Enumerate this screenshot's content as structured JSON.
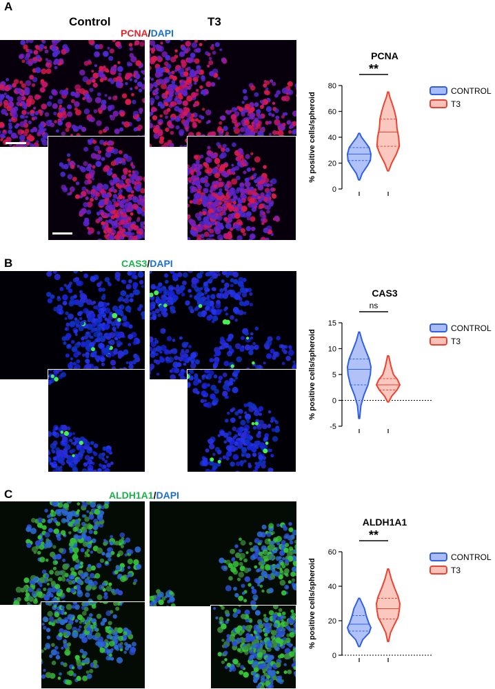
{
  "figure": {
    "panels": [
      {
        "letter": "A",
        "stain": {
          "marker": "PCNA",
          "sep": "/",
          "counter": "DAPI",
          "marker_color": "#e8222a",
          "counter_color": "#1a6fd0"
        },
        "columns": [
          "Control",
          "T3"
        ],
        "micro_palette": {
          "bg": "#07000c",
          "cells": [
            "#5a22c8",
            "#7a1fb5",
            "#c2166a",
            "#d81b4a",
            "#4d2ad1"
          ]
        }
      },
      {
        "letter": "B",
        "stain": {
          "marker": "CAS3",
          "sep": "/",
          "counter": "DAPI",
          "marker_color": "#19b34a",
          "counter_color": "#1a6fd0"
        },
        "columns": [],
        "micro_palette": {
          "bg": "#000006",
          "cells": [
            "#1822d6",
            "#2233e8",
            "#1030c0",
            "#2a2ad0"
          ],
          "spots": "#45f050"
        }
      },
      {
        "letter": "C",
        "stain": {
          "marker": "ALDH1A1",
          "sep": "/",
          "counter": "DAPI",
          "marker_color": "#19b34a",
          "counter_color": "#1a6fd0"
        },
        "columns": [],
        "micro_palette": {
          "bg": "#040a04",
          "cells": [
            "#2b4fd2",
            "#3a8a3a",
            "#36c23a",
            "#2a6ad0"
          ]
        }
      }
    ]
  },
  "chart_data": [
    {
      "type": "violin",
      "title": "PCNA",
      "ylabel": "% positive cells/spheroid",
      "ylim": [
        0,
        80
      ],
      "yticks": [
        0,
        20,
        40,
        60,
        80
      ],
      "significance": "**",
      "zero_line": false,
      "series": [
        {
          "name": "CONTROL",
          "color": "#2f5fe8",
          "fill": "#6f8ff0",
          "min": 7,
          "max": 43,
          "q1": 22,
          "median": 27,
          "q3": 32,
          "profile": [
            [
              7,
              0.05
            ],
            [
              12,
              0.25
            ],
            [
              18,
              0.7
            ],
            [
              22,
              0.95
            ],
            [
              27,
              1
            ],
            [
              32,
              0.85
            ],
            [
              37,
              0.45
            ],
            [
              40,
              0.2
            ],
            [
              43,
              0.05
            ]
          ]
        },
        {
          "name": "T3",
          "color": "#f0412e",
          "fill": "#f59a8a",
          "min": 14,
          "max": 75,
          "q1": 33,
          "median": 44,
          "q3": 54,
          "profile": [
            [
              14,
              0.05
            ],
            [
              20,
              0.3
            ],
            [
              27,
              0.7
            ],
            [
              33,
              0.95
            ],
            [
              40,
              0.9
            ],
            [
              47,
              0.75
            ],
            [
              54,
              0.7
            ],
            [
              60,
              0.55
            ],
            [
              66,
              0.35
            ],
            [
              71,
              0.15
            ],
            [
              75,
              0.04
            ]
          ]
        }
      ]
    },
    {
      "type": "violin",
      "title": "CAS3",
      "ylabel": "% positive cells/spheroid",
      "ylim": [
        -5,
        15
      ],
      "yticks": [
        -5,
        0,
        5,
        10,
        15
      ],
      "significance": "ns",
      "zero_line": true,
      "series": [
        {
          "name": "CONTROL",
          "color": "#2f5fe8",
          "fill": "#6f8ff0",
          "min": -3.5,
          "max": 13.2,
          "q1": 3,
          "median": 6,
          "q3": 8,
          "profile": [
            [
              -3.5,
              0.04
            ],
            [
              -1,
              0.15
            ],
            [
              1,
              0.4
            ],
            [
              3,
              0.75
            ],
            [
              5,
              0.95
            ],
            [
              6.5,
              1
            ],
            [
              8,
              0.85
            ],
            [
              10,
              0.5
            ],
            [
              11.5,
              0.25
            ],
            [
              13.2,
              0.04
            ]
          ]
        },
        {
          "name": "T3",
          "color": "#f0412e",
          "fill": "#f59a8a",
          "min": -0.3,
          "max": 8.6,
          "q1": 2,
          "median": 3,
          "q3": 4.2,
          "profile": [
            [
              -0.3,
              0.05
            ],
            [
              0.8,
              0.3
            ],
            [
              2,
              0.75
            ],
            [
              3,
              1
            ],
            [
              4,
              0.8
            ],
            [
              5,
              0.45
            ],
            [
              6.5,
              0.25
            ],
            [
              8.6,
              0.05
            ]
          ]
        }
      ]
    },
    {
      "type": "violin",
      "title": "ALDH1A1",
      "ylabel": "% positive cells/spheroid",
      "ylim": [
        0,
        60
      ],
      "yticks": [
        0,
        20,
        40,
        60
      ],
      "significance": "**",
      "zero_line": true,
      "series": [
        {
          "name": "CONTROL",
          "color": "#2f5fe8",
          "fill": "#6f8ff0",
          "min": 5,
          "max": 33,
          "q1": 14,
          "median": 18,
          "q3": 23,
          "profile": [
            [
              5,
              0.05
            ],
            [
              9,
              0.3
            ],
            [
              13,
              0.85
            ],
            [
              16,
              1
            ],
            [
              19,
              0.8
            ],
            [
              23,
              0.6
            ],
            [
              27,
              0.45
            ],
            [
              30,
              0.25
            ],
            [
              33,
              0.05
            ]
          ]
        },
        {
          "name": "T3",
          "color": "#f0412e",
          "fill": "#f59a8a",
          "min": 8,
          "max": 50,
          "q1": 21,
          "median": 27,
          "q3": 33,
          "profile": [
            [
              8,
              0.04
            ],
            [
              13,
              0.2
            ],
            [
              18,
              0.55
            ],
            [
              22,
              0.85
            ],
            [
              26,
              0.95
            ],
            [
              30,
              1
            ],
            [
              34,
              0.85
            ],
            [
              39,
              0.55
            ],
            [
              44,
              0.28
            ],
            [
              50,
              0.04
            ]
          ]
        }
      ]
    }
  ]
}
